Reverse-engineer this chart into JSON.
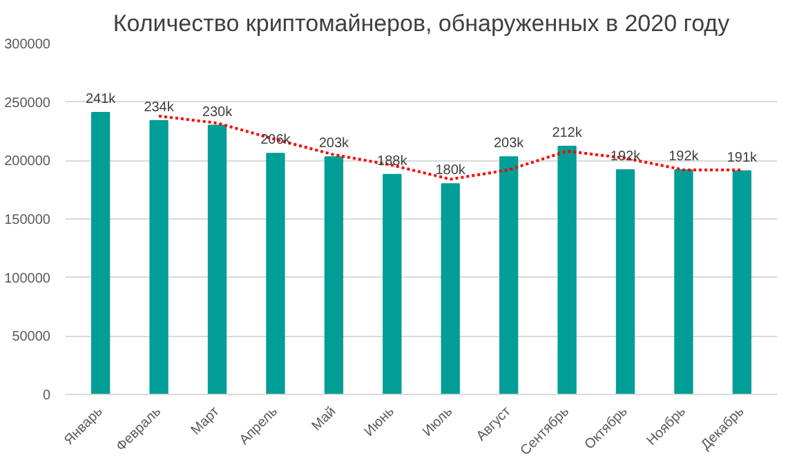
{
  "chart_data": {
    "type": "bar",
    "title": "Количество криптомайнеров, обнаруженных в 2020 году",
    "categories": [
      "Январь",
      "Февраль",
      "Март",
      "Апрель",
      "Май",
      "Июнь",
      "Июль",
      "Август",
      "Сентябрь",
      "Октябрь",
      "Ноябрь",
      "Декабрь"
    ],
    "series": [
      {
        "color": "#009e96",
        "values": [
          241000,
          234000,
          230000,
          206000,
          203000,
          188000,
          180000,
          203000,
          212000,
          192000,
          192000,
          191000
        ],
        "value_labels": [
          "241k",
          "234k",
          "230k",
          "206k",
          "203k",
          "188k",
          "180k",
          "203k",
          "212k",
          "192k",
          "192k",
          "191k"
        ]
      },
      {
        "type": "line",
        "color": "#ff0000",
        "line_style": "dotted",
        "marker": "none",
        "values": [
          null,
          238000,
          232000,
          218000,
          205000,
          196000,
          184000,
          192000,
          208000,
          202000,
          192000,
          192000
        ]
      }
    ],
    "ylim": [
      0,
      300000
    ],
    "yticks": [
      0,
      50000,
      100000,
      150000,
      200000,
      250000,
      300000
    ],
    "grid": "y"
  }
}
